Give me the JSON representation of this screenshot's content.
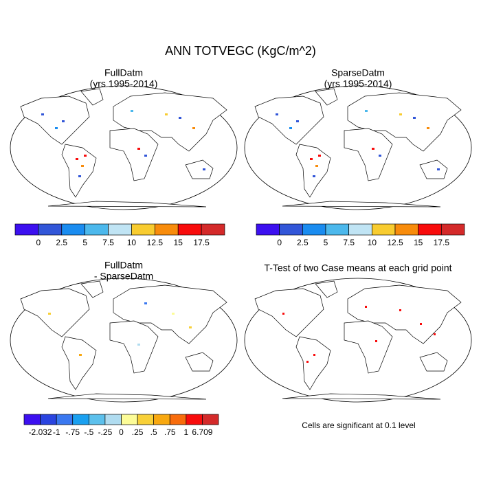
{
  "title": "ANN TOTVEGC (KgC/m^2)",
  "panels": [
    {
      "title": "FullDatm",
      "subtitle": "(yrs 1995-2014)"
    },
    {
      "title": "SparseDatm",
      "subtitle": "(yrs 1995-2014)"
    },
    {
      "title": "FullDatm",
      "subtitle": "- SparseDatm"
    },
    {
      "title": "T-Test of two Case means at each grid point"
    }
  ],
  "colorbars": [
    {
      "colors": [
        "#3c10f0",
        "#3256d8",
        "#1a8cf0",
        "#4cb8ec",
        "#c0e4f4",
        "#f8cc30",
        "#f88c0c",
        "#f80c0c",
        "#d42a2a"
      ],
      "labels": [
        0,
        2.5,
        5,
        7.5,
        10,
        12.5,
        15,
        17.5
      ]
    },
    {
      "colors": [
        "#3c10f0",
        "#2a44e0",
        "#3a78f0",
        "#1aa0f0",
        "#5cc0ec",
        "#b0dcf0",
        "#fcfc98",
        "#f8d038",
        "#f8a810",
        "#f86c0c",
        "#f80c0c",
        "#d42a2a"
      ],
      "labels": [
        "-2.032",
        "-1",
        "-.75",
        "-.5",
        "-.25",
        "0",
        ".25",
        ".5",
        ".75",
        "1",
        "6.709"
      ]
    }
  ],
  "note": "Cells are significant at 0.1 level"
}
